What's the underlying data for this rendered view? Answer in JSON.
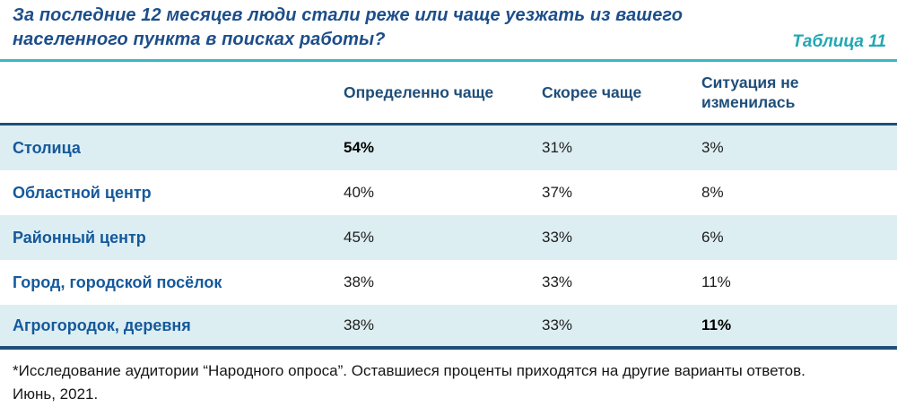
{
  "header": {
    "title_line1": "За последние 12 месяцев люди стали реже или чаще уезжать из вашего",
    "title_line2": "населенного пункта в поисках работы?",
    "table_label": "Таблица 11"
  },
  "table": {
    "columns": [
      "Определенно чаще",
      "Скорее чаще",
      "Ситуация не изменилась"
    ],
    "rows": [
      {
        "label": "Столица",
        "values": [
          "54%",
          "31%",
          "3%"
        ]
      },
      {
        "label": "Областной центр",
        "values": [
          "40%",
          "37%",
          "8%"
        ]
      },
      {
        "label": "Районный центр",
        "values": [
          "45%",
          "33%",
          "6%"
        ]
      },
      {
        "label": "Город, городской посёлок",
        "values": [
          "38%",
          "33%",
          "11%"
        ]
      },
      {
        "label": "Агрогородок, деревня",
        "values": [
          "38%",
          "33%",
          "11%"
        ]
      }
    ]
  },
  "footnote": {
    "line1": "*Исследование аудитории “Народного опроса”. Оставшиеся проценты приходятся на другие варианты ответов.",
    "line2": "Июнь, 2021."
  },
  "colors": {
    "title_blue": "#1d4e8a",
    "header_blue": "#1f4e79",
    "label_blue": "#15599c",
    "teal_accent": "#22a7b4",
    "teal_rule": "#3cb7c2",
    "stripe_bg": "#ddeef2",
    "rule_dark": "#1f4e79"
  },
  "chart_data": {
    "type": "table",
    "title": "За последние 12 месяцев люди стали реже или чаще уезжать из вашего населенного пункта в поисках работы?",
    "columns": [
      "Определенно чаще",
      "Скорее чаще",
      "Ситуация не изменилась"
    ],
    "categories": [
      "Столица",
      "Областной центр",
      "Районный центр",
      "Город, городской посёлок",
      "Агрогородок, деревня"
    ],
    "series": [
      {
        "name": "Определенно чаще",
        "values": [
          54,
          40,
          45,
          38,
          38
        ]
      },
      {
        "name": "Скорее чаще",
        "values": [
          31,
          37,
          33,
          33,
          33
        ]
      },
      {
        "name": "Ситуация не изменилась",
        "values": [
          3,
          8,
          6,
          11,
          11
        ]
      }
    ],
    "unit": "%"
  }
}
